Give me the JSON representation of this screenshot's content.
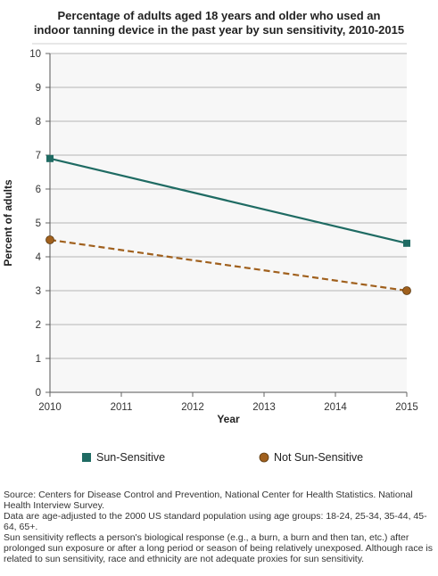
{
  "chart_data": {
    "type": "line",
    "title": "Percentage of adults aged 18 years and older who used an indoor tanning device in the past year by sun sensitivity, 2010-2015",
    "title_lines": [
      "Percentage of adults aged 18 years and older who used an",
      "indoor tanning device in the past year by sun sensitivity, 2010-2015"
    ],
    "xlabel": "Year",
    "ylabel": "Percent of adults",
    "x_ticks": [
      2010,
      2011,
      2012,
      2013,
      2014,
      2015
    ],
    "y_ticks": [
      0,
      1,
      2,
      3,
      4,
      5,
      6,
      7,
      8,
      9,
      10
    ],
    "xlim": [
      2010,
      2015
    ],
    "ylim": [
      0,
      10
    ],
    "grid": "horizontal",
    "legend_position": "bottom",
    "series": [
      {
        "name": "Sun-Sensitive",
        "x": [
          2010,
          2015
        ],
        "values": [
          6.9,
          4.4
        ],
        "color": "#1f6b63",
        "style": "solid",
        "marker": "square"
      },
      {
        "name": "Not Sun-Sensitive",
        "x": [
          2010,
          2015
        ],
        "values": [
          4.5,
          3.0
        ],
        "color": "#a0601d",
        "style": "dashed",
        "marker": "circle"
      }
    ]
  },
  "footnote": [
    "Source: Centers for Disease Control and Prevention, National Center for Health Statistics. National Health Interview Survey.",
    "Data are age-adjusted to the 2000 US standard population using age groups: 18-24, 25-34, 35-44, 45-64, 65+.",
    "Sun sensitivity reflects a person's biological response (e.g., a burn, a burn and then tan, etc.) after prolonged sun exposure or after a long period or season of being relatively unexposed. Although race is related to sun sensitivity, race and ethnicity are not adequate proxies for sun sensitivity."
  ]
}
